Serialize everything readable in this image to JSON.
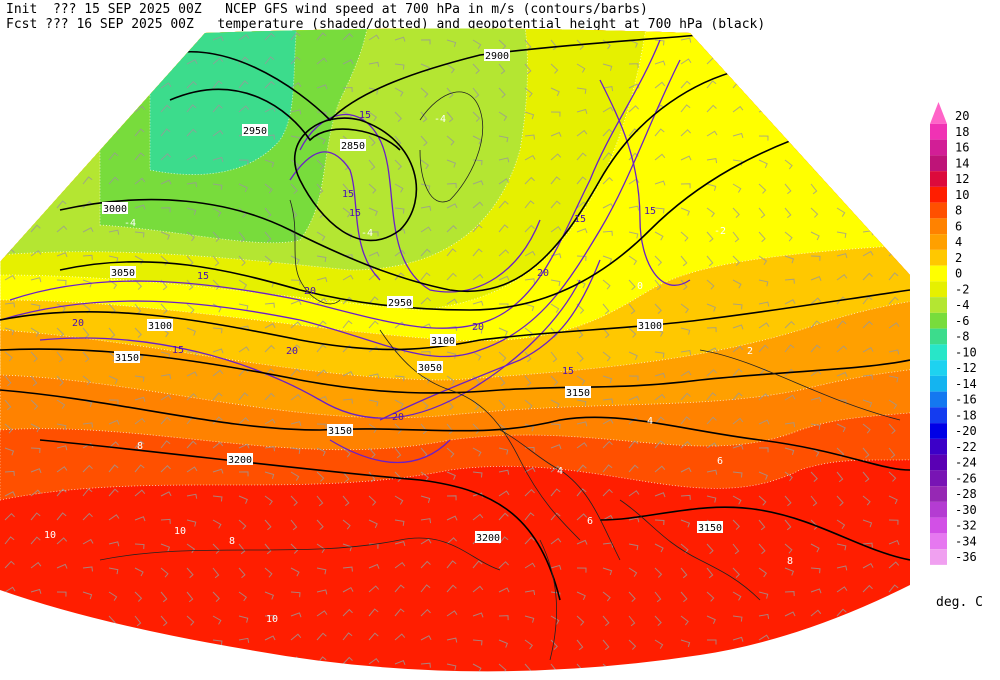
{
  "header": {
    "line1": {
      "init": "Init  ??? 15 SEP 2025 00Z",
      "title": "NCEP GFS wind speed at 700 hPa in m/s (contours/barbs)"
    },
    "line2": {
      "fcst": "Fcst ??? 16 SEP 2025 00Z",
      "title": "temperature (shaded/dotted) and geopotential height at 700 hPa (black)"
    }
  },
  "colorbar": {
    "labels": [
      "20",
      "18",
      "16",
      "14",
      "12",
      "10",
      "8",
      "6",
      "4",
      "2",
      "0",
      "-2",
      "-4",
      "-6",
      "-8",
      "-10",
      "-12",
      "-14",
      "-16",
      "-18",
      "-20",
      "-22",
      "-24",
      "-26",
      "-28",
      "-30",
      "-32",
      "-34",
      "-36"
    ],
    "colors": [
      "#ff64c8",
      "#f032b4",
      "#d21e96",
      "#be1478",
      "#dc0a3c",
      "#ff1e00",
      "#ff5000",
      "#ff8200",
      "#ffa000",
      "#ffc800",
      "#ffff00",
      "#e6f000",
      "#b4e632",
      "#78dc3c",
      "#3cdc8c",
      "#28e6c8",
      "#1ed2f0",
      "#14b4f0",
      "#1478f0",
      "#143cf0",
      "#0000e6",
      "#3c00c8",
      "#5a00b4",
      "#7814b4",
      "#9628b4",
      "#b43cd2",
      "#d250e6",
      "#e678f0",
      "#f0a0f0"
    ],
    "unit": "deg. C"
  },
  "map": {
    "height_labels": [
      "2900",
      "2950",
      "2850",
      "3000",
      "3050",
      "3100",
      "3150",
      "2950",
      "3100",
      "3050",
      "3100",
      "3150",
      "3150",
      "3200",
      "3200",
      "3150"
    ],
    "wind_labels": [
      "15",
      "15",
      "15",
      "20",
      "15",
      "20",
      "20",
      "15",
      "20",
      "15",
      "20",
      "15",
      "20",
      "15"
    ],
    "temp_labels": [
      "-4",
      "-4",
      "-4",
      "-2",
      "0",
      "2",
      "4",
      "6",
      "8",
      "10",
      "10",
      "10",
      "8",
      "6",
      "4",
      "8"
    ]
  }
}
